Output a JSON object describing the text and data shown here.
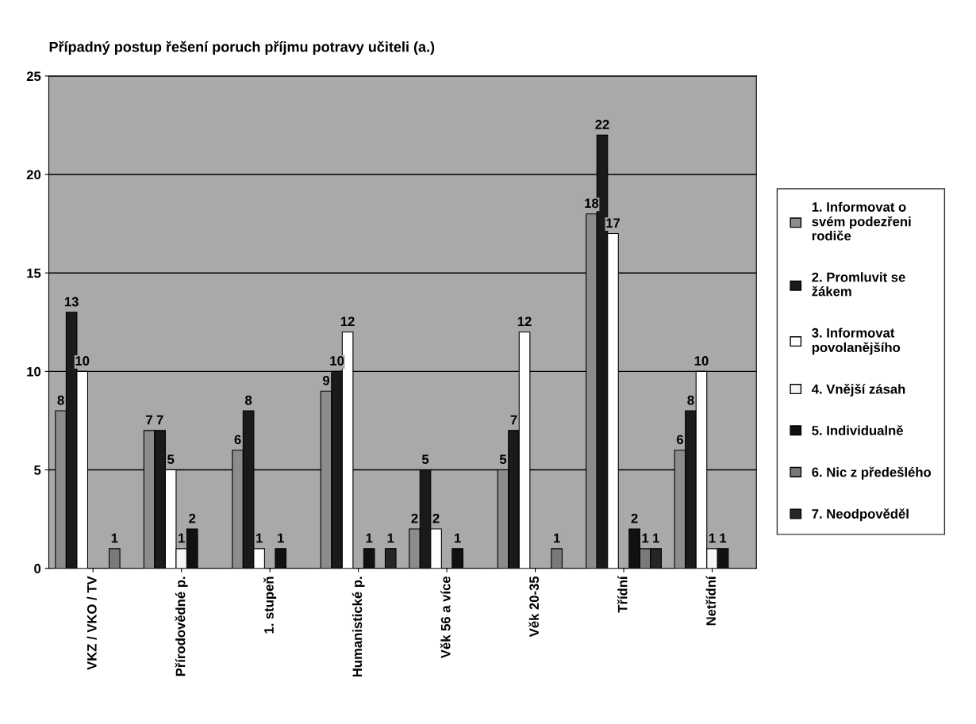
{
  "chart_data": {
    "type": "bar",
    "title": "Případný postup řešení poruch příjmu potravy učiteli (a.)",
    "categories": [
      "VKZ / VKO / TV",
      "Přírodovědné p.",
      "1. stupeň",
      "Humanistické p.",
      "Věk 56 a více",
      "Věk 20-35",
      "Třídní",
      "Netřídní"
    ],
    "series": [
      {
        "name": "1. Informovat o\nsvém podezřeni\nrodiče",
        "color": "#8c8c8c",
        "values": [
          8,
          7,
          6,
          9,
          2,
          5,
          18,
          6
        ],
        "value_labels": [
          "8",
          "7",
          "6",
          "9",
          "2",
          "5",
          "18",
          "6"
        ]
      },
      {
        "name": "2. Promluvit se\nžákem",
        "color": "#1a1a1a",
        "values": [
          13,
          7,
          8,
          10,
          5,
          7,
          22,
          8
        ],
        "value_labels": [
          "13",
          "7",
          "8",
          "10",
          "5",
          "7",
          "22",
          "8"
        ]
      },
      {
        "name": "3. Informovat\npovolanějšího",
        "color": "#ffffff",
        "values": [
          10,
          5,
          1,
          12,
          2,
          12,
          17,
          10
        ],
        "value_labels": [
          "10",
          "5",
          "1",
          "12",
          "2",
          "12",
          "17",
          "10"
        ]
      },
      {
        "name": "4. Vnější zásah",
        "color": "#f5f5f5",
        "values": [
          0,
          1,
          0,
          0,
          0,
          0,
          0,
          1
        ],
        "value_labels": [
          null,
          "1",
          null,
          null,
          null,
          null,
          null,
          "1"
        ]
      },
      {
        "name": "5. Individualně",
        "color": "#111111",
        "values": [
          0,
          2,
          1,
          1,
          1,
          0,
          2,
          1
        ],
        "value_labels": [
          null,
          "2",
          "1",
          "1",
          "1",
          null,
          "2",
          "1"
        ]
      },
      {
        "name": "6. Nic z předešlého",
        "color": "#7a7a7a",
        "values": [
          1,
          0,
          0,
          0,
          0,
          1,
          1,
          0
        ],
        "value_labels": [
          "1",
          null,
          null,
          null,
          null,
          "1",
          "1",
          null
        ]
      },
      {
        "name": "7. Neodpověděl",
        "color": "#262626",
        "values": [
          0,
          0,
          0,
          1,
          0,
          0,
          1,
          0
        ],
        "value_labels": [
          null,
          null,
          null,
          "1",
          null,
          null,
          "1",
          null
        ]
      }
    ],
    "ylim": [
      0,
      25
    ],
    "yticks": [
      0,
      5,
      10,
      15,
      20,
      25
    ],
    "grid": "y",
    "legend": "right"
  }
}
